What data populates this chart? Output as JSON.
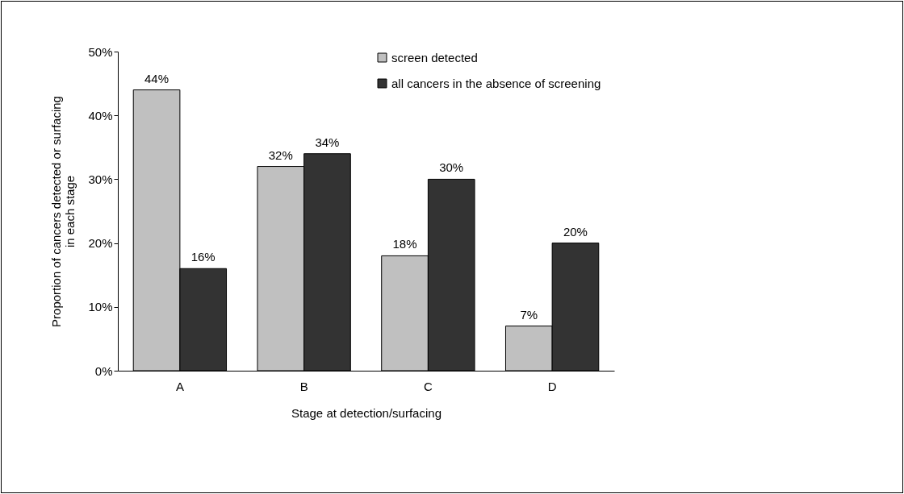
{
  "chart_data": {
    "type": "bar",
    "xlabel": "Stage at detection/surfacing",
    "ylabel": "Proportion of cancers detected or surfacing in each stage",
    "categories": [
      "A",
      "B",
      "C",
      "D"
    ],
    "series": [
      {
        "name": "screen detected",
        "color": "#c0c0c0",
        "values": [
          44,
          32,
          18,
          7
        ],
        "value_labels": [
          "44%",
          "32%",
          "18%",
          "7%"
        ]
      },
      {
        "name": "all cancers in the absence of screening",
        "color": "#333333",
        "values": [
          16,
          34,
          30,
          20
        ],
        "value_labels": [
          "16%",
          "34%",
          "30%",
          "20%"
        ]
      }
    ],
    "ylim": [
      0,
      50
    ],
    "yticks": [
      {
        "value": 0,
        "label": "0%"
      },
      {
        "value": 10,
        "label": "10%"
      },
      {
        "value": 20,
        "label": "20%"
      },
      {
        "value": 30,
        "label": "30%"
      },
      {
        "value": 40,
        "label": "40%"
      },
      {
        "value": 50,
        "label": "50%"
      }
    ],
    "grid": false,
    "legend": "top right"
  }
}
